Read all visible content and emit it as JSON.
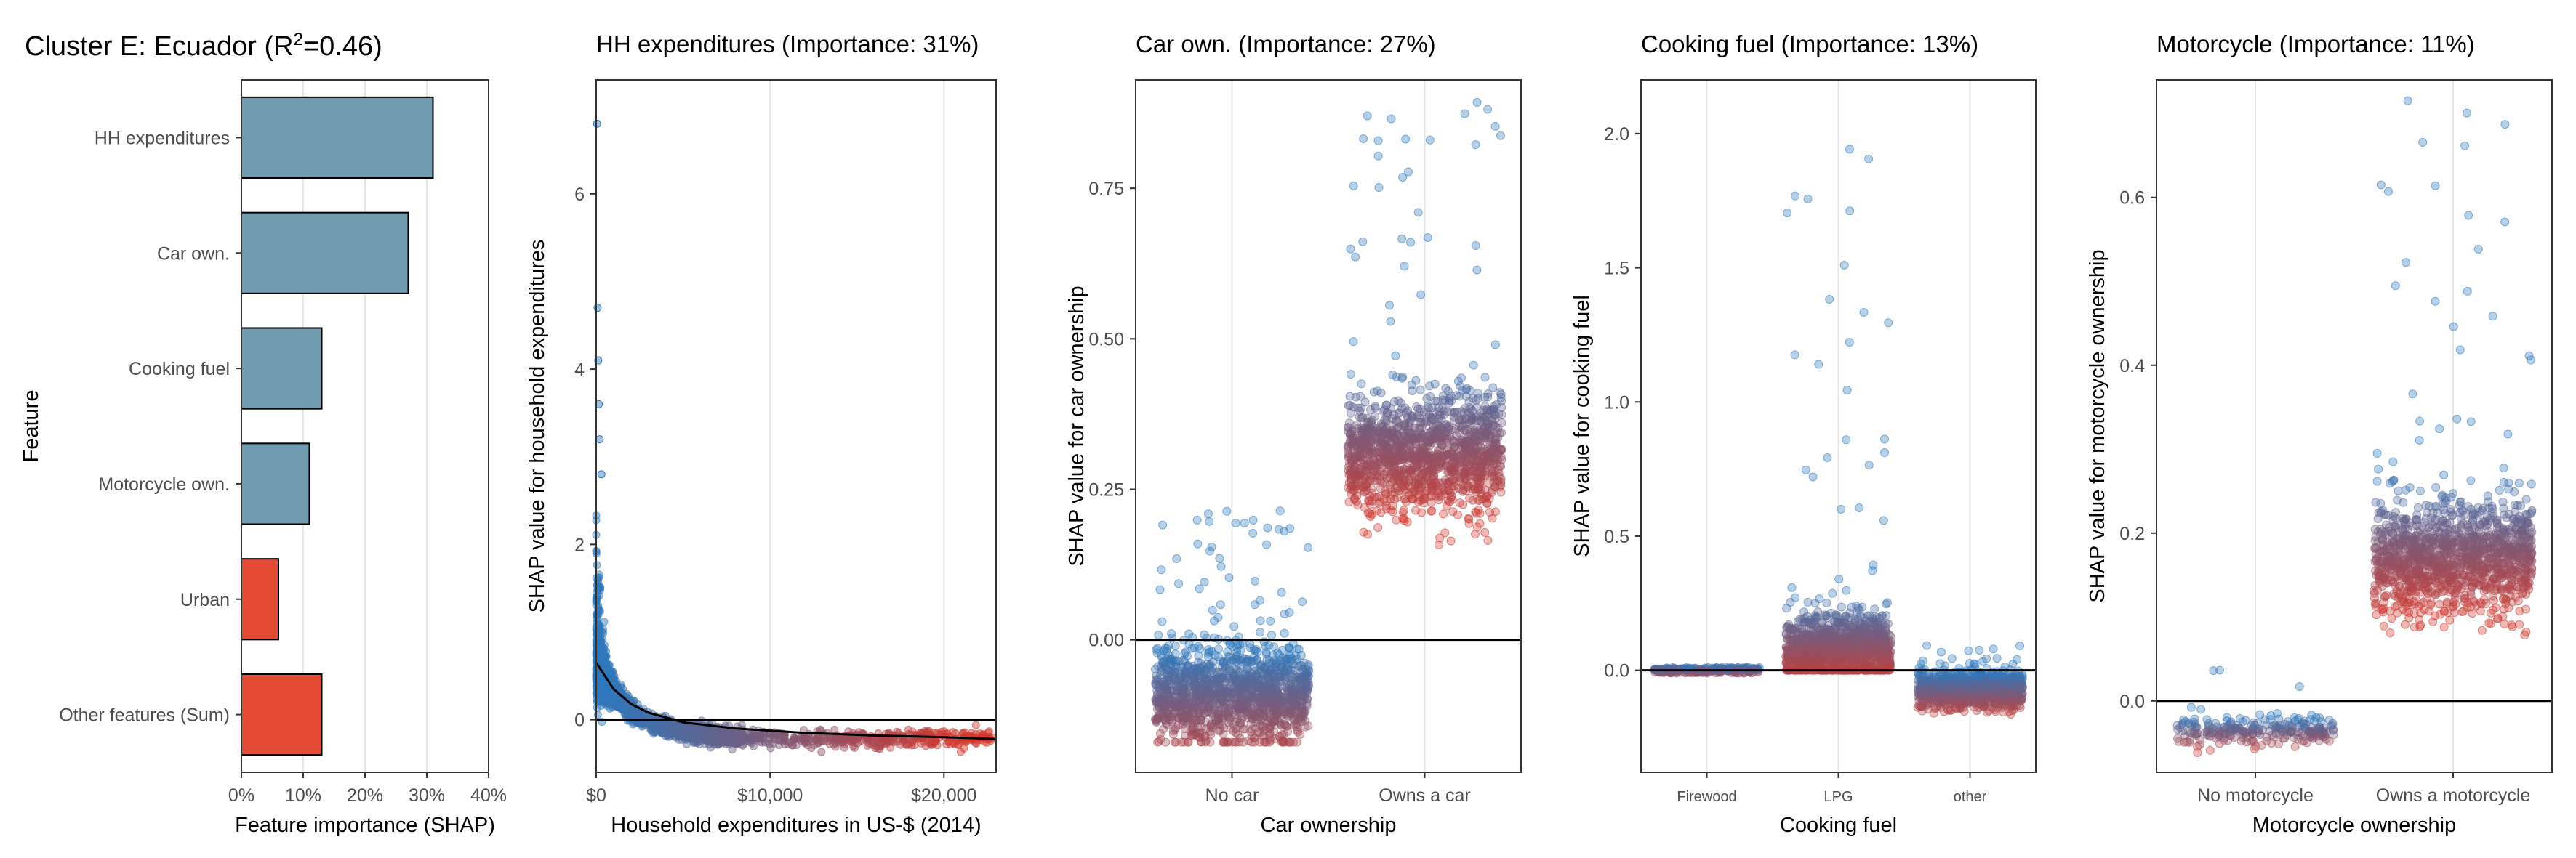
{
  "figure": {
    "title_prefix": "Cluster E: Ecuador (R",
    "title_sup": "2",
    "title_suffix": "=0.46)"
  },
  "colors": {
    "blue": "#2f78bc",
    "red": "#d0392e",
    "bar_blue": "#6f9aaf",
    "bar_red": "#e24a33",
    "grid": "#e6e6e6",
    "axis": "#333333"
  },
  "chart_data": [
    {
      "type": "bar",
      "orientation": "horizontal",
      "title": "",
      "xlabel": "Feature importance (SHAP)",
      "ylabel": "Feature",
      "categories": [
        "HH expenditures",
        "Car own.",
        "Cooking fuel",
        "Motorcycle own.",
        "Urban",
        "Other features (Sum)"
      ],
      "values": [
        31,
        27,
        13,
        11,
        6,
        13
      ],
      "bar_colors": [
        "#6f9aaf",
        "#6f9aaf",
        "#6f9aaf",
        "#6f9aaf",
        "#e24a33",
        "#e24a33"
      ],
      "xlim": [
        0,
        40
      ],
      "xticks": [
        "0%",
        "10%",
        "20%",
        "30%",
        "40%"
      ],
      "grid": true
    },
    {
      "type": "scatter",
      "title": "HH expenditures (Importance: 31%)",
      "xlabel": "Household expenditures in US-$ (2014)",
      "ylabel": "SHAP value for household expenditures",
      "xlim": [
        0,
        23000
      ],
      "ylim": [
        -0.6,
        7.3
      ],
      "xticks": [
        "$0",
        "$10,000",
        "$20,000"
      ],
      "yticks": [
        "0",
        "2",
        "4",
        "6"
      ],
      "trend_line": {
        "x": [
          0,
          1000,
          2000,
          3000,
          5000,
          8000,
          12000,
          16000,
          20000,
          23000
        ],
        "y": [
          0.65,
          0.35,
          0.18,
          0.08,
          -0.03,
          -0.1,
          -0.15,
          -0.18,
          -0.2,
          -0.22
        ]
      },
      "outliers": {
        "x": [
          50,
          80,
          120,
          150,
          200,
          300
        ],
        "y": [
          6.8,
          4.7,
          4.1,
          3.6,
          3.2,
          2.8
        ]
      },
      "zero_line": true
    },
    {
      "type": "scatter",
      "title": "Car own. (Importance: 27%)",
      "xlabel": "Car ownership",
      "ylabel": "SHAP value for car ownership",
      "categories": [
        "No car",
        "Owns a car"
      ],
      "ylim": [
        -0.22,
        0.93
      ],
      "yticks": [
        "0.00",
        "0.25",
        "0.50",
        "0.75"
      ],
      "groups": [
        {
          "category": "No car",
          "center": -0.09,
          "spread": 0.07,
          "min": -0.17,
          "max": 0.22
        },
        {
          "category": "Owns a car",
          "center": 0.31,
          "spread": 0.09,
          "min": 0.15,
          "max": 0.92
        }
      ],
      "zero_line": true
    },
    {
      "type": "scatter",
      "title": "Cooking fuel (Importance: 13%)",
      "xlabel": "Cooking fuel",
      "ylabel": "SHAP value for cooking fuel",
      "categories": [
        "Firewood",
        "LPG",
        "other"
      ],
      "ylim": [
        -0.38,
        2.2
      ],
      "yticks": [
        "0.0",
        "0.5",
        "1.0",
        "1.5",
        "2.0"
      ],
      "groups": [
        {
          "category": "Firewood",
          "center": 0.0,
          "spread": 0.01,
          "min": -0.01,
          "max": 0.01
        },
        {
          "category": "LPG",
          "center": 0.08,
          "spread": 0.12,
          "min": 0.0,
          "max": 2.1
        },
        {
          "category": "other",
          "center": -0.07,
          "spread": 0.06,
          "min": -0.24,
          "max": 0.1
        }
      ],
      "zero_line": true
    },
    {
      "type": "scatter",
      "title": "Motorcycle (Importance: 11%)",
      "xlabel": "Motorcycle ownership",
      "ylabel": "SHAP value for motorcycle ownership",
      "categories": [
        "No motorcycle",
        "Owns a motorcycle"
      ],
      "ylim": [
        -0.085,
        0.74
      ],
      "yticks": [
        "0.0",
        "0.2",
        "0.4",
        "0.6"
      ],
      "groups": [
        {
          "category": "No motorcycle",
          "center": -0.035,
          "spread": 0.015,
          "min": -0.07,
          "max": 0.04
        },
        {
          "category": "Owns a motorcycle",
          "center": 0.17,
          "spread": 0.06,
          "min": 0.06,
          "max": 0.72
        }
      ],
      "zero_line": true
    }
  ]
}
